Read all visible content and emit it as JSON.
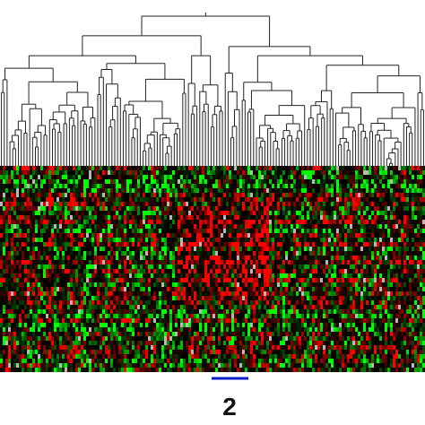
{
  "figure": {
    "label": "2"
  }
}
